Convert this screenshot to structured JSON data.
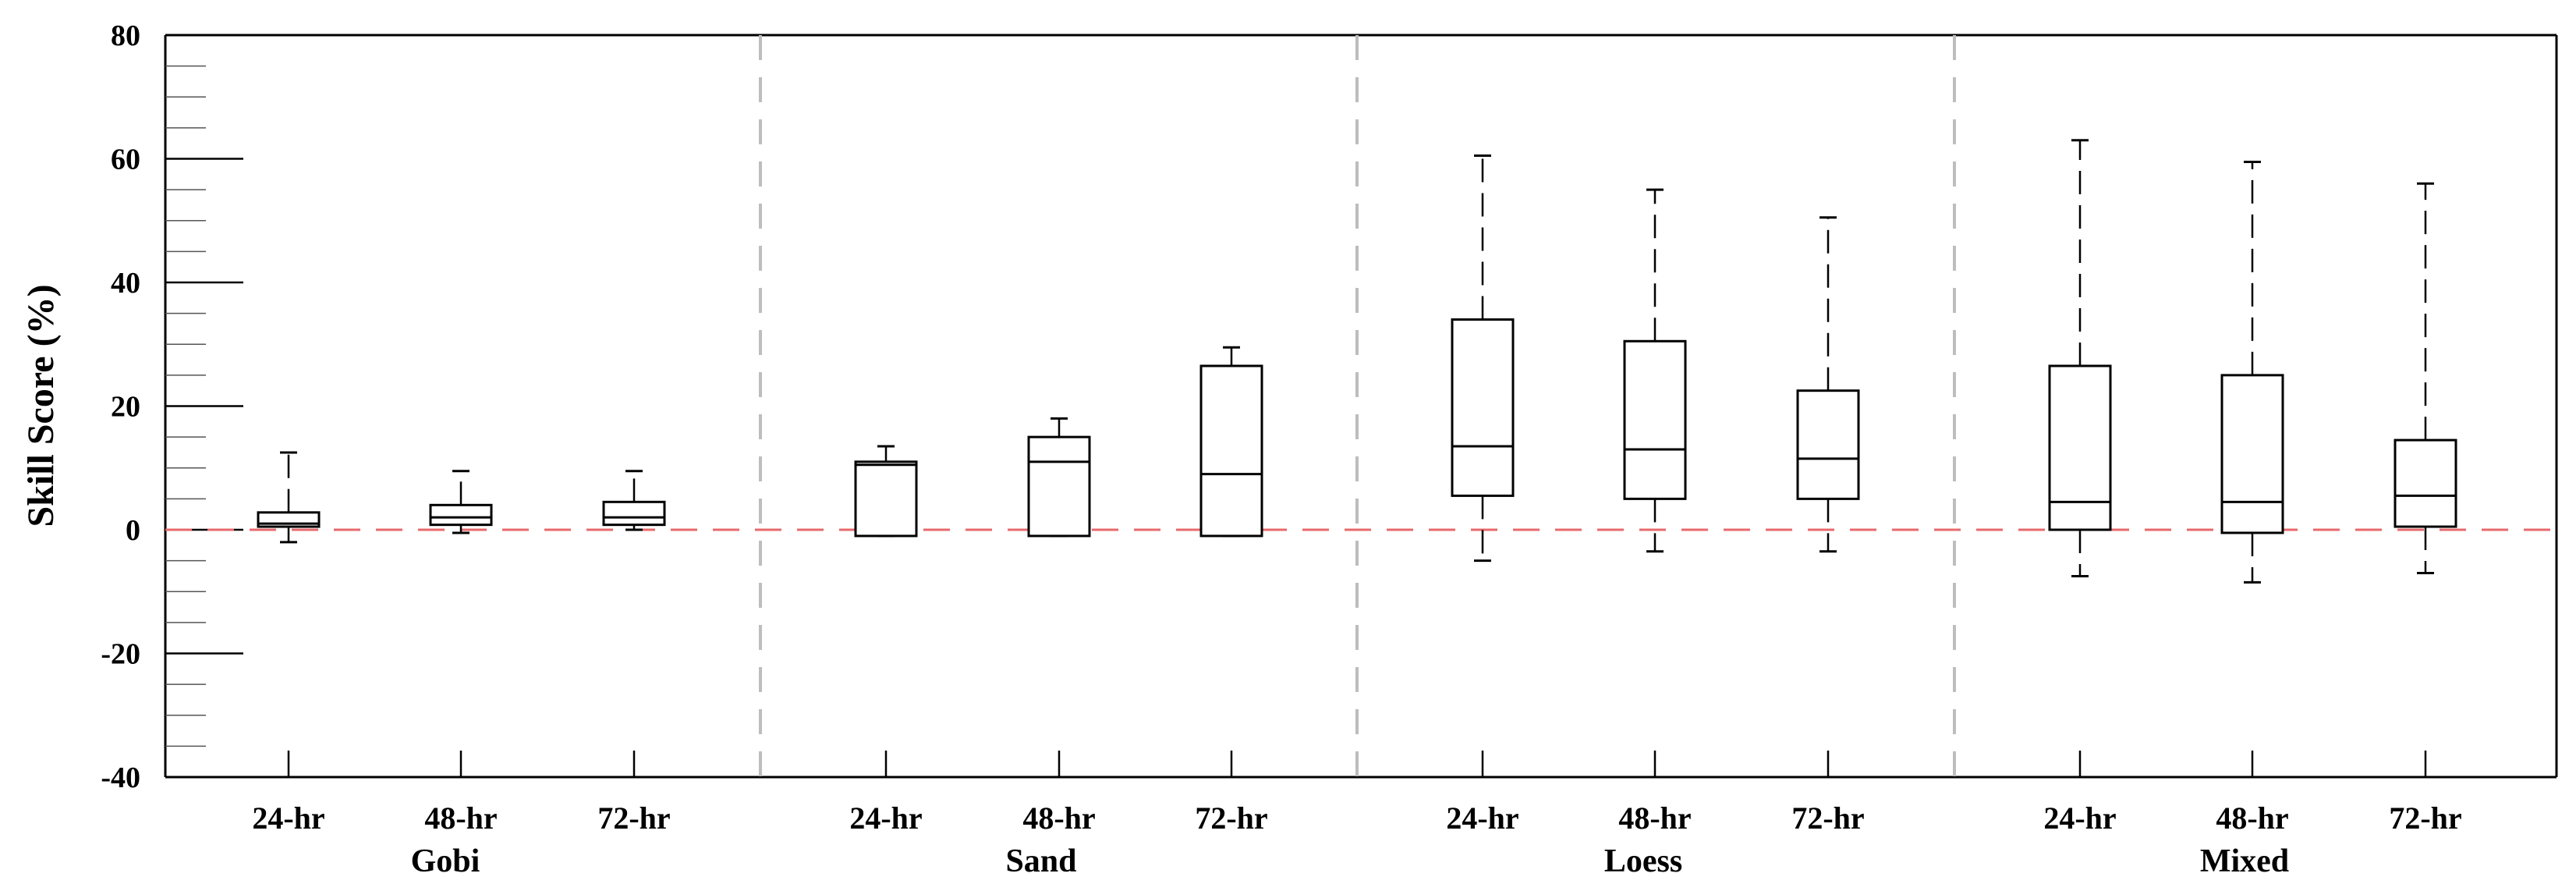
{
  "chart_data": {
    "type": "boxplot",
    "title": "",
    "xlabel": "",
    "ylabel": "Skill Score (%)",
    "ylim": [
      -40,
      80
    ],
    "yticks": [
      -40,
      -20,
      0,
      20,
      40,
      60,
      80
    ],
    "ytick_labels": [
      "-40",
      "-20",
      "0",
      "20",
      "40",
      "60",
      "80"
    ],
    "reference_line": {
      "y": 0,
      "color": "#e8686b",
      "style": "dashed"
    },
    "separator_color": "#bdbdbd",
    "box_color": "#000000",
    "groups": [
      {
        "name": "Gobi",
        "boxes": [
          {
            "label": "24-hr",
            "min": -2,
            "q1": 0.5,
            "median": 1,
            "q3": 2.8,
            "max": 12.5
          },
          {
            "label": "48-hr",
            "min": -0.5,
            "q1": 0.8,
            "median": 2,
            "q3": 4,
            "max": 9.5
          },
          {
            "label": "72-hr",
            "min": 0,
            "q1": 0.8,
            "median": 2,
            "q3": 4.5,
            "max": 9.5
          }
        ]
      },
      {
        "name": "Sand",
        "boxes": [
          {
            "label": "24-hr",
            "min": -1,
            "q1": -1,
            "median": 10.5,
            "q3": 11,
            "max": 13.5
          },
          {
            "label": "48-hr",
            "min": -1,
            "q1": -1,
            "median": 11,
            "q3": 15,
            "max": 18
          },
          {
            "label": "72-hr",
            "min": -1,
            "q1": -1,
            "median": 9,
            "q3": 26.5,
            "max": 29.5
          }
        ]
      },
      {
        "name": "Loess",
        "boxes": [
          {
            "label": "24-hr",
            "min": -5,
            "q1": 5.5,
            "median": 13.5,
            "q3": 34,
            "max": 60.5
          },
          {
            "label": "48-hr",
            "min": -3.5,
            "q1": 5,
            "median": 13,
            "q3": 30.5,
            "max": 55
          },
          {
            "label": "72-hr",
            "min": -3.5,
            "q1": 5,
            "median": 11.5,
            "q3": 22.5,
            "max": 50.5
          }
        ]
      },
      {
        "name": "Mixed",
        "boxes": [
          {
            "label": "24-hr",
            "min": -7.5,
            "q1": 0,
            "median": 4.5,
            "q3": 26.5,
            "max": 63
          },
          {
            "label": "48-hr",
            "min": -8.5,
            "q1": -0.5,
            "median": 4.5,
            "q3": 25,
            "max": 59.5
          },
          {
            "label": "72-hr",
            "min": -7,
            "q1": 0.5,
            "median": 5.5,
            "q3": 14.5,
            "max": 56
          }
        ]
      }
    ]
  }
}
